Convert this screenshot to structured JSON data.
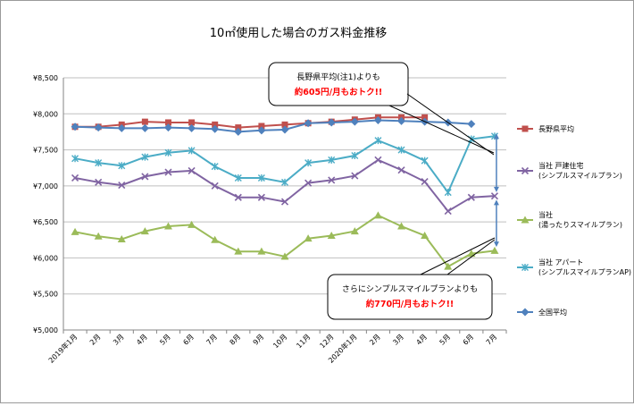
{
  "chart_data": {
    "type": "line",
    "title": "10㎡使用した場合のガス料金推移",
    "xlabel": "",
    "ylabel": "",
    "ylim": [
      5000,
      8500
    ],
    "ytick_step": 500,
    "grid": true,
    "legend_position": "right",
    "categories": [
      "2019年1月",
      "2月",
      "3月",
      "4月",
      "5月",
      "6月",
      "7月",
      "8月",
      "9月",
      "10月",
      "11月",
      "12月",
      "2020年1月",
      "2月",
      "3月",
      "4月",
      "5月",
      "6月",
      "7月"
    ],
    "yticks": [
      "¥5,000",
      "¥5,500",
      "¥6,000",
      "¥6,500",
      "¥7,000",
      "¥7,500",
      "¥8,000",
      "¥8,500"
    ],
    "series": [
      {
        "name": "長野県平均",
        "legend_lines": [
          "長野県平均"
        ],
        "color": "#c0504d",
        "marker": "square",
        "values": [
          7820,
          7820,
          7850,
          7890,
          7880,
          7880,
          7850,
          7810,
          7830,
          7850,
          7870,
          7890,
          7920,
          7950,
          7950,
          7950,
          null,
          null,
          null
        ]
      },
      {
        "name": "当社 戸建住宅（シンプルスマイルプラン）",
        "legend_lines": [
          "当社 戸建住宅",
          "(シンプルスマイルプラン)"
        ],
        "color": "#8064a2",
        "marker": "x",
        "values": [
          7110,
          7050,
          7010,
          7130,
          7190,
          7210,
          7000,
          6840,
          6840,
          6780,
          7040,
          7080,
          7140,
          7360,
          7220,
          7060,
          6650,
          6840,
          6860
        ]
      },
      {
        "name": "当社（湯ったりスマイルプラン）",
        "legend_lines": [
          "当社",
          "(湯ったりスマイルプラン)"
        ],
        "color": "#9bbb59",
        "marker": "triangle",
        "values": [
          6360,
          6300,
          6260,
          6370,
          6440,
          6460,
          6250,
          6090,
          6090,
          6020,
          6270,
          6310,
          6370,
          6590,
          6440,
          6310,
          5880,
          6060,
          6100
        ]
      },
      {
        "name": "当社 アパート（シンプルスマイルプランAP）",
        "legend_lines": [
          "当社 アパート",
          "(シンプルスマイルプランAP)"
        ],
        "color": "#4bacc6",
        "marker": "star",
        "values": [
          7380,
          7320,
          7280,
          7400,
          7460,
          7490,
          7270,
          7110,
          7110,
          7050,
          7320,
          7360,
          7420,
          7630,
          7500,
          7350,
          6910,
          7650,
          7690
        ]
      },
      {
        "name": "全国平均",
        "legend_lines": [
          "全国平均"
        ],
        "color": "#4f81bd",
        "marker": "diamond",
        "values": [
          7820,
          7810,
          7800,
          7800,
          7810,
          7800,
          7790,
          7750,
          7770,
          7780,
          7870,
          7880,
          7890,
          7910,
          7900,
          7890,
          7880,
          7860,
          null
        ]
      }
    ],
    "annotations": [
      {
        "lines": [
          "長野県平均(注1)よりも"
        ],
        "highlight": "約605円/月もおトク!!"
      },
      {
        "lines": [
          "さらにシンプルスマイルプランよりも"
        ],
        "highlight": "約770円/月もおトク!!"
      }
    ]
  }
}
